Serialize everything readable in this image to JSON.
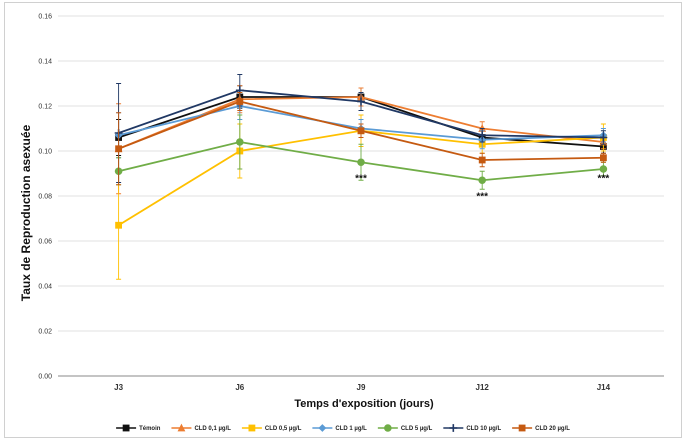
{
  "chart_data": {
    "type": "line",
    "title": "",
    "xlabel": "Temps d'exposition (jours)",
    "ylabel": "Taux de Reproduction asexuée",
    "categories": [
      "J3",
      "J6",
      "J9",
      "J12",
      "J14"
    ],
    "ylim": [
      0,
      0.16
    ],
    "yticks": [
      "0.00",
      "0.02",
      "0.04",
      "0.06",
      "0.08",
      "0.10",
      "0.12",
      "0.14",
      "0.16"
    ],
    "grid": true,
    "legend_position": "bottom",
    "series": [
      {
        "name": "Témoin",
        "color": "#111111",
        "marker": "square",
        "values": [
          0.106,
          0.124,
          0.124,
          0.106,
          0.102
        ],
        "errors": [
          0.008,
          0.005,
          0.004,
          0.004,
          0.003
        ]
      },
      {
        "name": "CLD 0,1 µg/L",
        "color": "#ED7D31",
        "marker": "triangle",
        "values": [
          0.101,
          0.123,
          0.124,
          0.11,
          0.104
        ],
        "errors": [
          0.02,
          0.006,
          0.004,
          0.003,
          0.003
        ]
      },
      {
        "name": "CLD 0,5 µg/L",
        "color": "#FFC000",
        "marker": "square",
        "values": [
          0.067,
          0.1,
          0.109,
          0.103,
          0.106
        ],
        "errors": [
          0.024,
          0.012,
          0.007,
          0.004,
          0.006
        ]
      },
      {
        "name": "CLD 1 µg/L",
        "color": "#5B9BD5",
        "marker": "diamond",
        "values": [
          0.107,
          0.12,
          0.11,
          0.105,
          0.107
        ],
        "errors": [
          0.01,
          0.006,
          0.004,
          0.004,
          0.003
        ]
      },
      {
        "name": "CLD 5 µg/L",
        "color": "#70AD47",
        "marker": "circle",
        "values": [
          0.091,
          0.104,
          0.095,
          0.087,
          0.092
        ],
        "errors": [
          0.006,
          0.012,
          0.008,
          0.004,
          0.003
        ]
      },
      {
        "name": "CLD 10 µg/L",
        "color": "#203864",
        "marker": "plus",
        "values": [
          0.108,
          0.127,
          0.122,
          0.107,
          0.106
        ],
        "errors": [
          0.022,
          0.007,
          0.004,
          0.003,
          0.003
        ]
      },
      {
        "name": "CLD 20 µg/L",
        "color": "#C55A11",
        "marker": "square",
        "values": [
          0.101,
          0.122,
          0.109,
          0.096,
          0.097
        ],
        "errors": [
          0.016,
          0.004,
          0.003,
          0.003,
          0.002
        ]
      }
    ],
    "annotations": [
      {
        "text": "***",
        "category": "J9",
        "y": 0.0865
      },
      {
        "text": "***",
        "category": "J12",
        "y": 0.0785
      },
      {
        "text": "***",
        "category": "J14",
        "y": 0.0865
      }
    ]
  }
}
